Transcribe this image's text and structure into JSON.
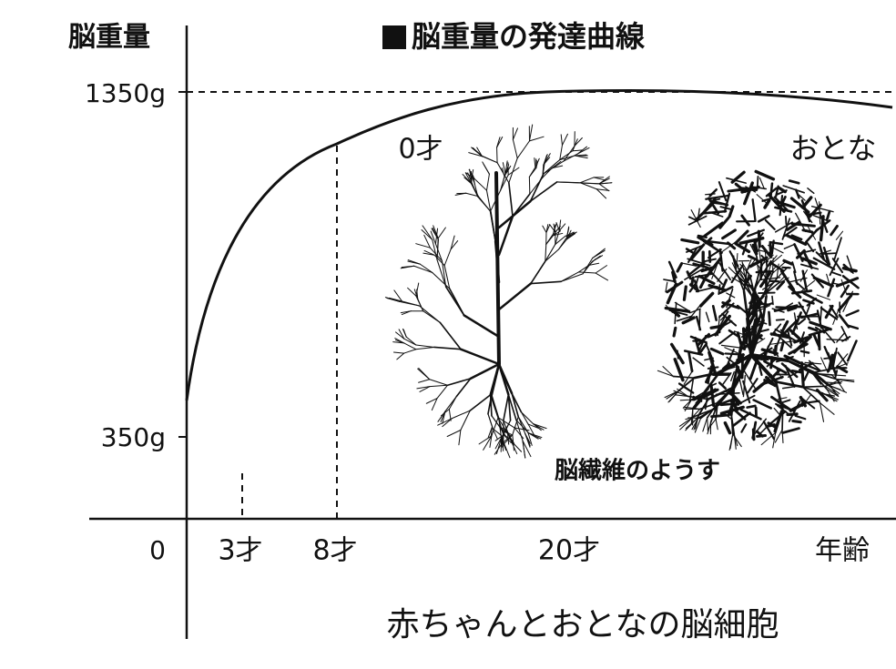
{
  "header": {
    "y_axis_label": "脳重量",
    "title": "脳重量の発達曲線"
  },
  "y_labels": [
    "1350g",
    "350g",
    "0"
  ],
  "x_labels": [
    "3才",
    "8才",
    "20才",
    "年齢"
  ],
  "panels": {
    "infant": "0才",
    "adult": "おとな",
    "caption": "脳繊維のようす"
  },
  "footer": "赤ちゃんとおとなの脳細胞"
}
